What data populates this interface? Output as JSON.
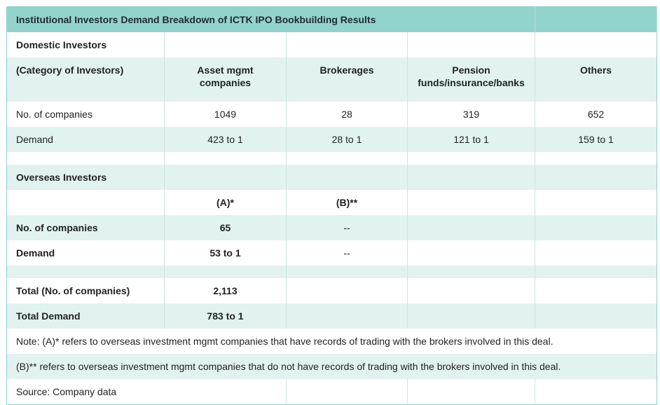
{
  "title": "Institutional Investors Demand Breakdown of ICTK IPO Bookbuilding Results",
  "domestic": {
    "section_label": "Domestic Investors",
    "category_label": "(Category of Investors)",
    "columns": [
      "Asset mgmt companies",
      "Brokerages",
      "Pension funds/insurance/banks",
      "Others"
    ],
    "companies_label": "No. of companies",
    "companies": [
      "1049",
      "28",
      "319",
      "652"
    ],
    "demand_label": "Demand",
    "demand": [
      "423 to 1",
      "28 to 1",
      "121 to 1",
      "159 to 1"
    ]
  },
  "overseas": {
    "section_label": "Overseas Investors",
    "columns": [
      "(A)*",
      "(B)**"
    ],
    "companies_label": "No. of companies",
    "companies": [
      "65",
      "--"
    ],
    "demand_label": "Demand",
    "demand": [
      "53 to 1",
      "--"
    ]
  },
  "totals": {
    "companies_label": "Total (No. of companies)",
    "companies": "2,113",
    "demand_label": "Total Demand",
    "demand": "783 to 1"
  },
  "notes": {
    "note_a": "Note: (A)* refers to overseas investment mgmt companies that have records of trading with the brokers involved in this deal.",
    "note_b": "(B)** refers to overseas investment mgmt companies that do not have records of trading with the brokers involved in this deal.",
    "source": "Source: Company data"
  }
}
